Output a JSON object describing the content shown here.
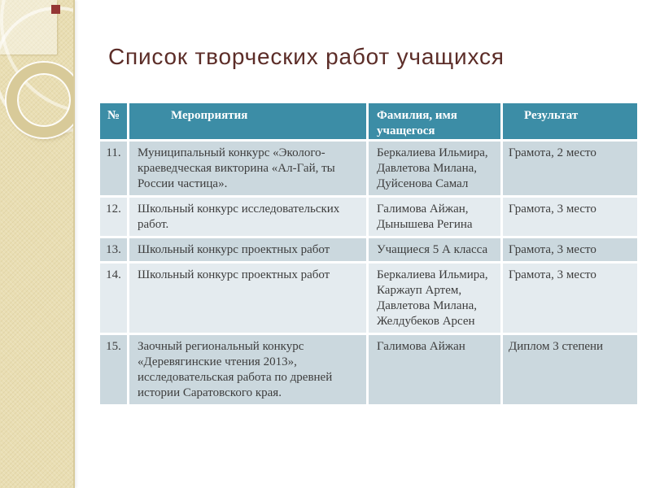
{
  "slide": {
    "title": "Список творческих работ учащихся"
  },
  "colors": {
    "page_bg": "#FFFFFF",
    "sidebar_bg": "#E9DEB3",
    "accent_square": "#943634",
    "title_text": "#5C2D28",
    "header_bg": "#3C8DA6",
    "header_text": "#FFFFFF",
    "row_dark": "#CBD8DE",
    "row_light": "#E4EBEF",
    "body_text": "#3D3D3D"
  },
  "table": {
    "columns": [
      "№",
      "Мероприятия",
      "Фамилия, имя учащегося",
      "Результат"
    ],
    "rows": [
      {
        "num": "11.",
        "event": "Муниципальный конкурс «Эколого-краеведческая викторина «Ал-Гай, ты России частица».",
        "students": "Беркалиева Ильмира, Давлетова Милана, Дуйсенова Самал",
        "result": "Грамота, 2 место"
      },
      {
        "num": "12.",
        "event": "Школьный конкурс исследовательских работ.",
        "students": "Галимова Айжан, Дынышева Регина",
        "result": "Грамота, 3 место"
      },
      {
        "num": "13.",
        "event": "Школьный конкурс проектных работ",
        "students": "Учащиеся 5 А класса",
        "result": "Грамота, 3 место"
      },
      {
        "num": "14.",
        "event": "Школьный конкурс проектных работ",
        "students": "Беркалиева Ильмира, Каржауп Артем, Давлетова Милана, Желдубеков Арсен",
        "result": "Грамота, 3 место"
      },
      {
        "num": "15.",
        "event": "Заочный региональный конкурс «Деревягинские чтения 2013», исследовательская работа по древней истории Саратовского края.",
        "students": "Галимова Айжан",
        "result": "Диплом 3 степени"
      }
    ]
  }
}
